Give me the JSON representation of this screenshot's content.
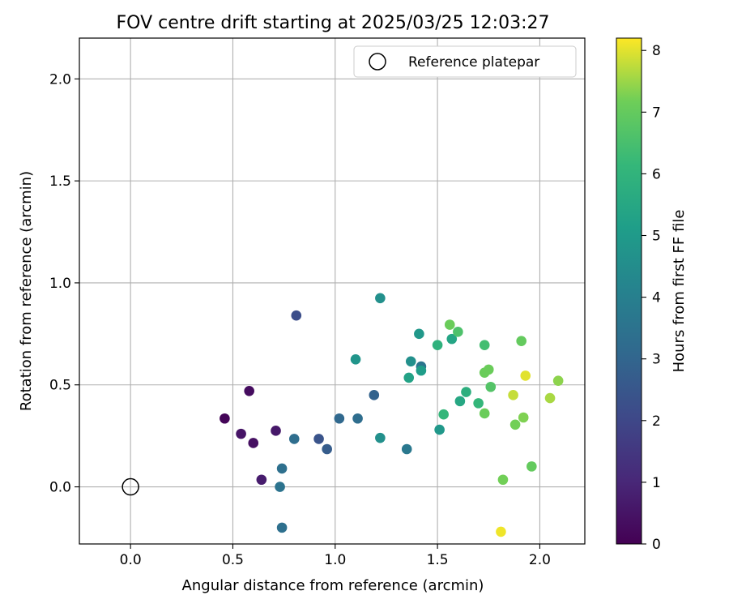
{
  "chart_data": {
    "type": "scatter",
    "title": "FOV centre drift starting at 2025/03/25 12:03:27",
    "xlabel": "Angular distance from reference (arcmin)",
    "ylabel": "Rotation from reference (arcmin)",
    "xlim": [
      -0.25,
      2.22
    ],
    "ylim": [
      -0.28,
      2.2
    ],
    "xticks": [
      0.0,
      0.5,
      1.0,
      1.5,
      2.0
    ],
    "yticks": [
      0.0,
      0.5,
      1.0,
      1.5,
      2.0
    ],
    "xtick_labels": [
      "0.0",
      "0.5",
      "1.0",
      "1.5",
      "2.0"
    ],
    "ytick_labels": [
      "0.0",
      "0.5",
      "1.0",
      "1.5",
      "2.0"
    ],
    "grid": true,
    "legend": {
      "label": "Reference platepar",
      "location": "top-right"
    },
    "reference_point": {
      "x": 0.0,
      "y": 0.0
    },
    "colorbar": {
      "label": "Hours from first FF file",
      "min": 0,
      "max": 8.2,
      "ticks": [
        0,
        1,
        2,
        3,
        4,
        5,
        6,
        7,
        8
      ],
      "tick_labels": [
        "0",
        "1",
        "2",
        "3",
        "4",
        "5",
        "6",
        "7",
        "8"
      ],
      "colormap": "viridis"
    },
    "points": [
      {
        "x": 0.46,
        "y": 0.335,
        "hours": 0.1
      },
      {
        "x": 0.58,
        "y": 0.47,
        "hours": 0.3
      },
      {
        "x": 0.54,
        "y": 0.26,
        "hours": 0.5
      },
      {
        "x": 0.6,
        "y": 0.215,
        "hours": 0.4
      },
      {
        "x": 0.71,
        "y": 0.275,
        "hours": 0.6
      },
      {
        "x": 0.64,
        "y": 0.035,
        "hours": 0.7
      },
      {
        "x": 0.81,
        "y": 0.84,
        "hours": 2.2
      },
      {
        "x": 0.8,
        "y": 0.235,
        "hours": 3.3
      },
      {
        "x": 0.74,
        "y": 0.09,
        "hours": 3.4
      },
      {
        "x": 0.73,
        "y": 0.0,
        "hours": 3.5
      },
      {
        "x": 0.74,
        "y": -0.2,
        "hours": 3.4
      },
      {
        "x": 0.92,
        "y": 0.235,
        "hours": 2.4
      },
      {
        "x": 0.96,
        "y": 0.185,
        "hours": 2.7
      },
      {
        "x": 1.02,
        "y": 0.335,
        "hours": 3.1
      },
      {
        "x": 1.11,
        "y": 0.335,
        "hours": 3.3
      },
      {
        "x": 1.19,
        "y": 0.45,
        "hours": 2.9
      },
      {
        "x": 1.1,
        "y": 0.625,
        "hours": 4.8
      },
      {
        "x": 1.22,
        "y": 0.925,
        "hours": 4.6
      },
      {
        "x": 1.22,
        "y": 0.24,
        "hours": 4.6
      },
      {
        "x": 1.35,
        "y": 0.185,
        "hours": 3.7
      },
      {
        "x": 1.36,
        "y": 0.535,
        "hours": 5.3
      },
      {
        "x": 1.37,
        "y": 0.615,
        "hours": 4.6
      },
      {
        "x": 1.41,
        "y": 0.75,
        "hours": 4.9
      },
      {
        "x": 1.42,
        "y": 0.59,
        "hours": 3.6
      },
      {
        "x": 1.42,
        "y": 0.57,
        "hours": 5.1
      },
      {
        "x": 1.5,
        "y": 0.695,
        "hours": 5.9
      },
      {
        "x": 1.51,
        "y": 0.28,
        "hours": 4.9
      },
      {
        "x": 1.53,
        "y": 0.355,
        "hours": 6.1
      },
      {
        "x": 1.56,
        "y": 0.795,
        "hours": 7.1
      },
      {
        "x": 1.57,
        "y": 0.725,
        "hours": 5.4
      },
      {
        "x": 1.6,
        "y": 0.76,
        "hours": 6.6
      },
      {
        "x": 1.61,
        "y": 0.42,
        "hours": 5.5
      },
      {
        "x": 1.64,
        "y": 0.465,
        "hours": 5.8
      },
      {
        "x": 1.7,
        "y": 0.41,
        "hours": 6.1
      },
      {
        "x": 1.73,
        "y": 0.56,
        "hours": 7.1
      },
      {
        "x": 1.73,
        "y": 0.36,
        "hours": 7.1
      },
      {
        "x": 1.73,
        "y": 0.695,
        "hours": 6.4
      },
      {
        "x": 1.75,
        "y": 0.575,
        "hours": 7.1
      },
      {
        "x": 1.76,
        "y": 0.49,
        "hours": 6.7
      },
      {
        "x": 1.81,
        "y": -0.22,
        "hours": 8.1
      },
      {
        "x": 1.82,
        "y": 0.035,
        "hours": 7.2
      },
      {
        "x": 1.87,
        "y": 0.45,
        "hours": 7.8
      },
      {
        "x": 1.88,
        "y": 0.305,
        "hours": 7.2
      },
      {
        "x": 1.91,
        "y": 0.715,
        "hours": 7.0
      },
      {
        "x": 1.92,
        "y": 0.34,
        "hours": 7.3
      },
      {
        "x": 1.93,
        "y": 0.545,
        "hours": 8.0
      },
      {
        "x": 1.96,
        "y": 0.1,
        "hours": 7.0
      },
      {
        "x": 2.05,
        "y": 0.435,
        "hours": 7.6
      },
      {
        "x": 2.09,
        "y": 0.52,
        "hours": 7.4
      }
    ]
  }
}
